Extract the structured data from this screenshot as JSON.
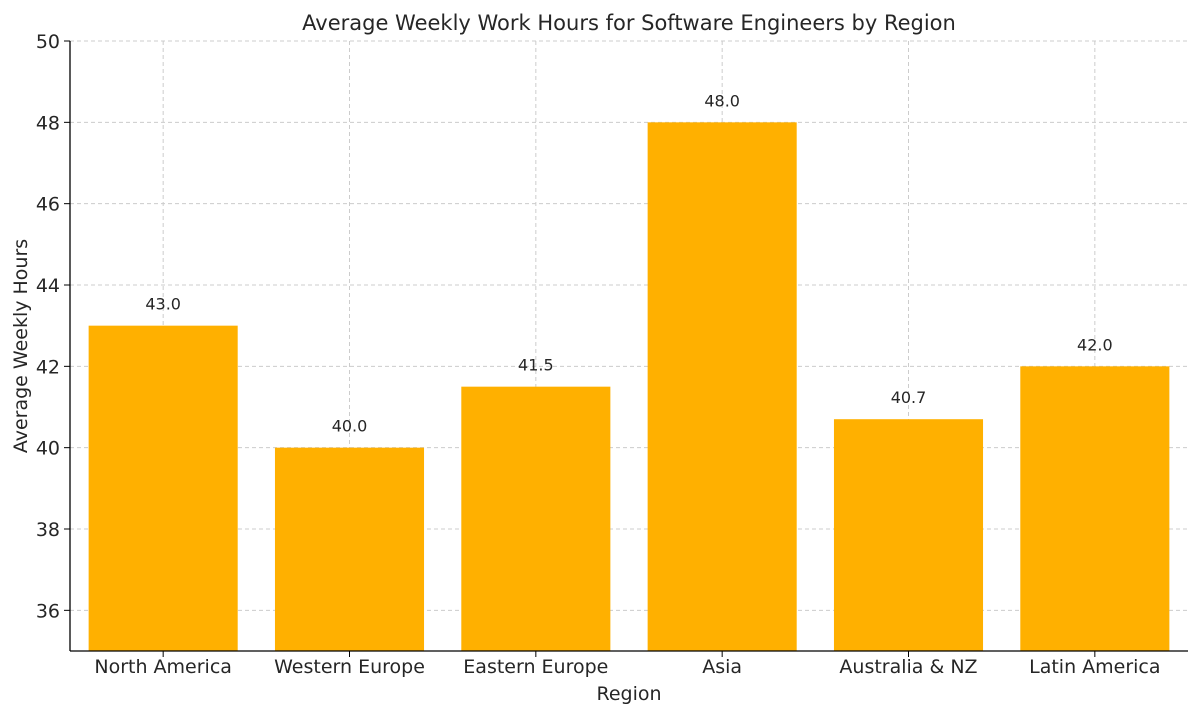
{
  "chart_data": {
    "type": "bar",
    "title": "Average Weekly Work Hours for Software Engineers by Region",
    "xlabel": "Region",
    "ylabel": "Average Weekly Hours",
    "categories": [
      "North America",
      "Western Europe",
      "Eastern Europe",
      "Asia",
      "Australia & NZ",
      "Latin America"
    ],
    "values": [
      43.0,
      40.0,
      41.5,
      48.0,
      40.7,
      42.0
    ],
    "value_labels": [
      "43.0",
      "40.0",
      "41.5",
      "48.0",
      "40.7",
      "42.0"
    ],
    "ylim": [
      35,
      50
    ],
    "yticks": [
      36,
      38,
      40,
      42,
      44,
      46,
      48,
      50
    ],
    "grid": true,
    "bar_color": "#FFB000",
    "grid_color": "#cccccc",
    "text_color": "#262626"
  }
}
